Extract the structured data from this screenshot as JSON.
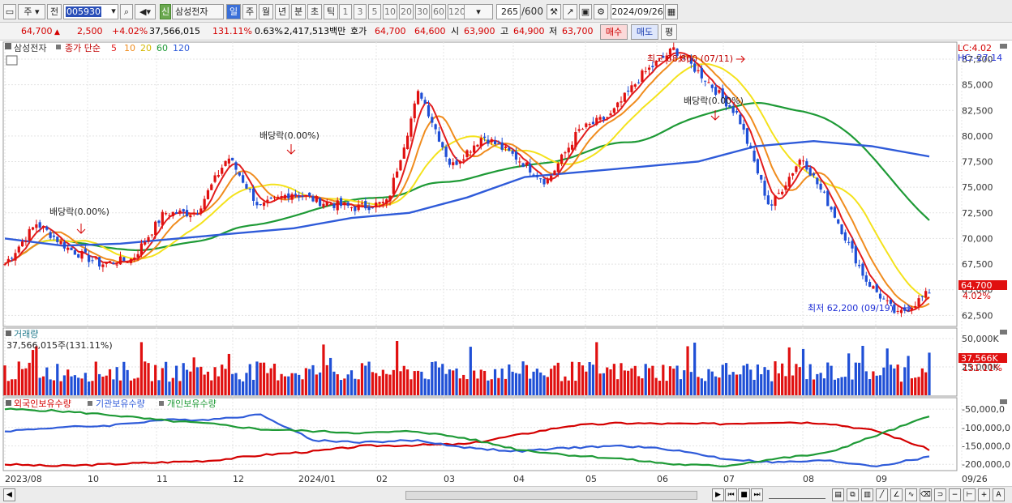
{
  "toolbar": {
    "type_select": "주",
    "mode_btn": "전",
    "code_value": "005930",
    "badge_new": "신",
    "stock_name": "삼성전자",
    "periods": [
      "일",
      "주",
      "월",
      "년",
      "분",
      "초",
      "틱"
    ],
    "intervals": [
      "1",
      "3",
      "5",
      "10",
      "20",
      "30",
      "60",
      "120"
    ],
    "count": "265",
    "count_total": "/600",
    "date": "2024/09/26"
  },
  "quote": {
    "price": "64,700",
    "arrow": "▲",
    "change": "2,500",
    "change_pct": "+4.02%",
    "volume": "37,566,015",
    "vol_ratio": "131.11%",
    "turnover": "0.63%",
    "amount": "2,417,513백만",
    "hoga_label": "호가",
    "ask": "64,700",
    "bid": "64,600",
    "open_label": "시",
    "open": "63,900",
    "high_label": "고",
    "high": "64,900",
    "low_label": "저",
    "low": "63,700",
    "buy_btn": "매수",
    "sell_btn": "매도",
    "avg_btn": "평"
  },
  "price_pane": {
    "name": "삼성전자",
    "legend_prefix": "종가 단순",
    "ma": [
      "5",
      "10",
      "20",
      "60",
      "120"
    ],
    "ma_colors": [
      "#e21d1d",
      "#f08c1e",
      "#f4e21c",
      "#1e9a36",
      "#2f5bd9"
    ],
    "lc": "LC:4.02",
    "hc": "HC:-27.14",
    "y_labels": [
      "87,500",
      "85,000",
      "82,500",
      "80,000",
      "77,500",
      "75,000",
      "72,500",
      "70,000",
      "67,500",
      "65,000",
      "62,500"
    ],
    "current_price": "64,700",
    "current_pct": "4.02%",
    "high_note": "최고 88,800 (07/11)",
    "low_note": "최저 62,200 (09/19)",
    "div_notes": [
      "배당락(0.00%)",
      "배당락(0.00%)",
      "배당락(0.00%)"
    ]
  },
  "volume_pane": {
    "title": "거래량",
    "value": "37,566,015주(131.11%)",
    "y_labels": [
      "50,000K",
      "25,000K"
    ],
    "current": "37,566K",
    "current_pct": "131.11%"
  },
  "holding_pane": {
    "legend": [
      "외국인보유수량",
      "기관보유수량",
      "개인보유수량"
    ],
    "legend_colors": [
      "#d40000",
      "#2f5bd9",
      "#1e9a36"
    ],
    "y_labels": [
      "-50,000,0",
      "-100,000,0",
      "-150,000,0",
      "-200,000,0"
    ]
  },
  "x_labels": [
    "2023/08",
    "10",
    "11",
    "12",
    "2024/01",
    "02",
    "03",
    "04",
    "05",
    "06",
    "07",
    "08",
    "09",
    "09/26"
  ],
  "chart_data": {
    "type": "candlestick",
    "title": "삼성전자",
    "ylim": [
      61500,
      89000
    ],
    "anchors_x": [
      "2023/08",
      "10",
      "11",
      "12",
      "2024/01",
      "02",
      "03",
      "04",
      "05",
      "06",
      "07",
      "08",
      "09",
      "09/26"
    ],
    "close_path": [
      67500,
      71500,
      69000,
      67500,
      68000,
      72500,
      72500,
      78000,
      73000,
      74500,
      73500,
      73000,
      73500,
      84500,
      77000,
      80000,
      78000,
      75500,
      80500,
      82000,
      86000,
      88500,
      85500,
      82000,
      73000,
      78000,
      72500,
      66000,
      62500,
      64700
    ],
    "ma120_path": [
      70000,
      69300,
      69500,
      70000,
      70500,
      71000,
      72000,
      72500,
      74000,
      76000,
      76500,
      77000,
      77500,
      79000,
      79500,
      79000,
      78000
    ],
    "volume_max": 50000000
  }
}
